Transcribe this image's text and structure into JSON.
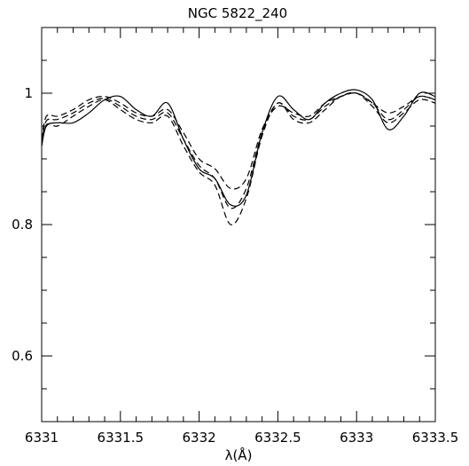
{
  "chart_data": {
    "type": "line",
    "title": "NGC 5822_240",
    "xlabel": "λ(Å)",
    "ylabel": "",
    "xlim": [
      6331,
      6333.5
    ],
    "ylim": [
      0.5,
      1.1
    ],
    "x_major_ticks": [
      6331,
      6331.5,
      6332,
      6332.5,
      6333,
      6333.5
    ],
    "x_tick_labels": [
      "6331",
      "6331.5",
      "6332",
      "6332.5",
      "6333",
      "6333.5"
    ],
    "x_minor_step": 0.1,
    "y_major_ticks": [
      0.6,
      0.8,
      1.0
    ],
    "y_tick_labels": [
      "0.6",
      "0.8",
      "1"
    ],
    "y_minor_step": 0.05,
    "grid": false,
    "legend": "none",
    "series": [
      {
        "style": "solid",
        "x": [
          6331,
          6331.03,
          6331.1,
          6331.2,
          6331.3,
          6331.4,
          6331.5,
          6331.6,
          6331.7,
          6331.8,
          6331.9,
          6332.0,
          6332.1,
          6332.2,
          6332.3,
          6332.4,
          6332.5,
          6332.6,
          6332.7,
          6332.8,
          6332.9,
          6333.0,
          6333.1,
          6333.2,
          6333.3,
          6333.4,
          6333.5
        ],
        "y": [
          0.92,
          0.95,
          0.955,
          0.955,
          0.97,
          0.99,
          0.995,
          0.975,
          0.965,
          0.985,
          0.93,
          0.885,
          0.87,
          0.83,
          0.845,
          0.94,
          0.995,
          0.975,
          0.96,
          0.985,
          1.0,
          1.005,
          0.99,
          0.945,
          0.965,
          1.0,
          0.995
        ]
      },
      {
        "style": "dashed",
        "x": [
          6331,
          6331.03,
          6331.1,
          6331.2,
          6331.3,
          6331.4,
          6331.5,
          6331.6,
          6331.7,
          6331.8,
          6331.9,
          6332.0,
          6332.1,
          6332.2,
          6332.3,
          6332.4,
          6332.5,
          6332.6,
          6332.7,
          6332.8,
          6332.9,
          6333.0,
          6333.1,
          6333.2,
          6333.3,
          6333.4,
          6333.5
        ],
        "y": [
          0.93,
          0.965,
          0.965,
          0.975,
          0.99,
          0.995,
          0.985,
          0.97,
          0.965,
          0.975,
          0.94,
          0.9,
          0.885,
          0.855,
          0.87,
          0.945,
          0.98,
          0.97,
          0.965,
          0.985,
          0.995,
          1.0,
          0.985,
          0.97,
          0.98,
          0.995,
          0.99
        ]
      },
      {
        "style": "dashed",
        "x": [
          6331,
          6331.03,
          6331.1,
          6331.2,
          6331.3,
          6331.4,
          6331.5,
          6331.6,
          6331.7,
          6331.8,
          6331.9,
          6332.0,
          6332.1,
          6332.2,
          6332.3,
          6332.4,
          6332.5,
          6332.6,
          6332.7,
          6332.8,
          6332.9,
          6333.0,
          6333.1,
          6333.2,
          6333.3,
          6333.4,
          6333.5
        ],
        "y": [
          0.925,
          0.958,
          0.96,
          0.97,
          0.985,
          0.992,
          0.98,
          0.965,
          0.96,
          0.97,
          0.93,
          0.89,
          0.87,
          0.825,
          0.855,
          0.94,
          0.985,
          0.965,
          0.96,
          0.98,
          0.995,
          1.0,
          0.985,
          0.96,
          0.975,
          0.995,
          0.99
        ]
      },
      {
        "style": "dashed",
        "x": [
          6331,
          6331.03,
          6331.1,
          6331.2,
          6331.3,
          6331.4,
          6331.5,
          6331.6,
          6331.7,
          6331.8,
          6331.9,
          6332.0,
          6332.1,
          6332.2,
          6332.3,
          6332.4,
          6332.5,
          6332.6,
          6332.7,
          6332.8,
          6332.9,
          6333.0,
          6333.1,
          6333.2,
          6333.3,
          6333.4,
          6333.5
        ],
        "y": [
          0.92,
          0.952,
          0.95,
          0.965,
          0.98,
          0.99,
          0.975,
          0.96,
          0.955,
          0.965,
          0.92,
          0.88,
          0.86,
          0.8,
          0.84,
          0.935,
          0.985,
          0.96,
          0.955,
          0.975,
          0.995,
          1.0,
          0.98,
          0.955,
          0.97,
          0.99,
          0.985
        ]
      }
    ]
  }
}
